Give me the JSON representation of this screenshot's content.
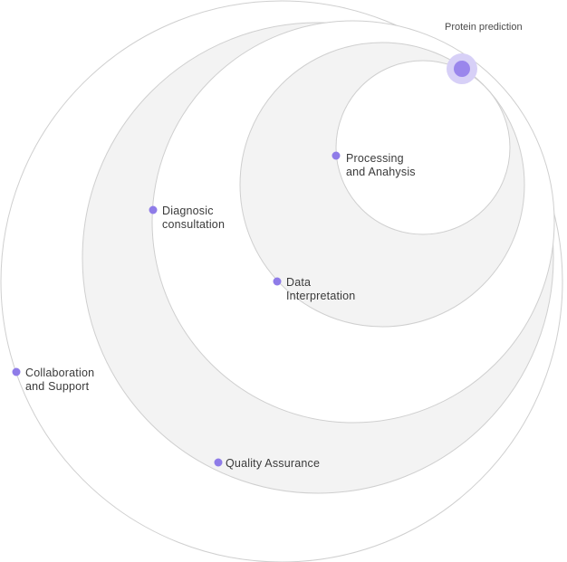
{
  "diagram": {
    "origin": {
      "label": "Protein prediction",
      "icon": "origin-node"
    },
    "stages": [
      {
        "id": "processing",
        "lines": [
          "Processing",
          "and Anahysis"
        ]
      },
      {
        "id": "data-interpretation",
        "lines": [
          "Data",
          "Interpretation"
        ]
      },
      {
        "id": "diagnosic-consultation",
        "lines": [
          "Diagnosic",
          "consultation"
        ]
      },
      {
        "id": "quality-assurance",
        "lines": [
          "Quality Assurance"
        ]
      },
      {
        "id": "collaboration-support",
        "lines": [
          "Collaboration",
          "and Support"
        ]
      }
    ],
    "colors": {
      "ring_fill_shaded": "#f3f3f3",
      "ring_fill_white": "#ffffff",
      "ring_stroke": "#cfcfcf",
      "node_dot": "#8f7ce8",
      "origin_dot": "#9a86ec",
      "origin_halo": "#d7d0f7",
      "label_text": "#3a3a3a"
    }
  }
}
